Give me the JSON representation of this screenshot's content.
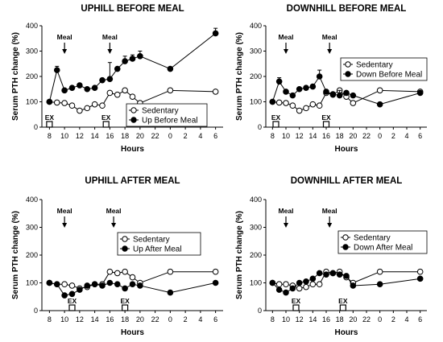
{
  "chart_data": [
    {
      "type": "line",
      "title": "UPHILL BEFORE MEAL",
      "xlabel": "Hours",
      "ylabel": "Serum PTH change (%)",
      "ylim": [
        0,
        400
      ],
      "yticks": [
        "0",
        "100",
        "200",
        "300",
        "400"
      ],
      "xticks": [
        "8",
        "10",
        "12",
        "14",
        "16",
        "18",
        "20",
        "22",
        "0",
        "2",
        "4",
        "6"
      ],
      "legend_position": "bottom-right",
      "annotations": {
        "meal_label": "Meal",
        "meal_times": [
          10,
          16
        ],
        "ex_label": "EX",
        "ex_times": [
          8,
          15.5
        ]
      },
      "series": [
        {
          "name": "Sedentary",
          "marker": "open",
          "x": [
            8,
            9,
            10,
            11,
            12,
            13,
            14,
            15,
            16,
            17,
            18,
            19,
            20,
            24,
            30
          ],
          "y": [
            100,
            97,
            95,
            85,
            65,
            75,
            90,
            85,
            135,
            128,
            145,
            120,
            95,
            145,
            140
          ]
        },
        {
          "name": "Up Before Meal",
          "marker": "filled",
          "x": [
            8,
            9,
            10,
            11,
            12,
            13,
            14,
            15,
            16,
            17,
            18,
            19,
            20,
            24,
            30
          ],
          "y": [
            100,
            225,
            145,
            155,
            165,
            150,
            155,
            185,
            190,
            230,
            260,
            270,
            280,
            230,
            370
          ],
          "err": [
            0,
            15,
            0,
            0,
            0,
            0,
            0,
            0,
            65,
            0,
            20,
            15,
            20,
            0,
            20
          ]
        }
      ]
    },
    {
      "type": "line",
      "title": "DOWNHILL BEFORE MEAL",
      "xlabel": "Hours",
      "ylabel": "Serum PTH change (%)",
      "ylim": [
        0,
        400
      ],
      "yticks": [
        "0",
        "100",
        "200",
        "300",
        "400"
      ],
      "xticks": [
        "8",
        "10",
        "12",
        "14",
        "16",
        "18",
        "20",
        "22",
        "0",
        "2",
        "4",
        "6"
      ],
      "legend_position": "top-right",
      "annotations": {
        "meal_label": "Meal",
        "meal_times": [
          10,
          16.5
        ],
        "ex_label": "EX",
        "ex_times": [
          8.5,
          16
        ]
      },
      "series": [
        {
          "name": "Sedentary",
          "marker": "open",
          "x": [
            8,
            9,
            10,
            11,
            12,
            13,
            14,
            15,
            16,
            17,
            18,
            19,
            20,
            24,
            30
          ],
          "y": [
            100,
            97,
            95,
            85,
            65,
            75,
            90,
            85,
            135,
            128,
            145,
            120,
            95,
            145,
            140
          ]
        },
        {
          "name": "Down Before Meal",
          "marker": "filled",
          "x": [
            8,
            9,
            10,
            11,
            12,
            13,
            14,
            15,
            16,
            17,
            18,
            19,
            20,
            24,
            30
          ],
          "y": [
            100,
            180,
            140,
            125,
            150,
            155,
            160,
            200,
            140,
            130,
            125,
            135,
            125,
            90,
            135
          ],
          "err": [
            0,
            15,
            0,
            0,
            0,
            0,
            0,
            25,
            0,
            0,
            20,
            0,
            0,
            0,
            0
          ]
        }
      ]
    },
    {
      "type": "line",
      "title": "UPHILL AFTER MEAL",
      "xlabel": "Hours",
      "ylabel": "Serum PTH change (%)",
      "ylim": [
        0,
        400
      ],
      "yticks": [
        "0",
        "100",
        "200",
        "300",
        "400"
      ],
      "xticks": [
        "8",
        "10",
        "12",
        "14",
        "16",
        "18",
        "20",
        "22",
        "0",
        "2",
        "4",
        "6"
      ],
      "legend_position": "top-right",
      "annotations": {
        "meal_label": "Meal",
        "meal_times": [
          10,
          16.5
        ],
        "ex_label": "EX",
        "ex_times": [
          11,
          18
        ]
      },
      "series": [
        {
          "name": "Sedentary",
          "marker": "open",
          "x": [
            8,
            9,
            10,
            11,
            12,
            13,
            14,
            15,
            16,
            17,
            18,
            19,
            20,
            24,
            30
          ],
          "y": [
            100,
            95,
            95,
            90,
            80,
            85,
            95,
            95,
            140,
            135,
            140,
            120,
            100,
            140,
            140
          ]
        },
        {
          "name": "Up After Meal",
          "marker": "filled",
          "x": [
            8,
            9,
            10,
            11,
            12,
            13,
            14,
            15,
            16,
            17,
            18,
            19,
            20,
            24,
            30
          ],
          "y": [
            100,
            95,
            55,
            60,
            75,
            90,
            95,
            90,
            100,
            95,
            80,
            95,
            90,
            65,
            100
          ]
        }
      ]
    },
    {
      "type": "line",
      "title": "DOWNHILL AFTER MEAL",
      "xlabel": "Hours",
      "ylabel": "Serum PTH change (%)",
      "ylim": [
        0,
        400
      ],
      "yticks": [
        "0",
        "100",
        "200",
        "300",
        "400"
      ],
      "xticks": [
        "8",
        "10",
        "12",
        "14",
        "16",
        "18",
        "20",
        "22",
        "0",
        "2",
        "4",
        "6"
      ],
      "legend_position": "top-right",
      "annotations": {
        "meal_label": "Meal",
        "meal_times": [
          10,
          16.5
        ],
        "ex_label": "EX",
        "ex_times": [
          11.5,
          18.5
        ]
      },
      "series": [
        {
          "name": "Sedentary",
          "marker": "open",
          "x": [
            8,
            9,
            10,
            11,
            12,
            13,
            14,
            15,
            16,
            17,
            18,
            19,
            20,
            24,
            30
          ],
          "y": [
            100,
            95,
            95,
            90,
            80,
            85,
            95,
            95,
            140,
            135,
            140,
            120,
            100,
            140,
            140
          ]
        },
        {
          "name": "Down After Meal",
          "marker": "filled",
          "x": [
            8,
            9,
            10,
            11,
            12,
            13,
            14,
            15,
            16,
            17,
            18,
            19,
            20,
            24,
            30
          ],
          "y": [
            100,
            75,
            65,
            80,
            100,
            105,
            115,
            135,
            130,
            135,
            130,
            125,
            90,
            95,
            115
          ]
        }
      ]
    }
  ]
}
